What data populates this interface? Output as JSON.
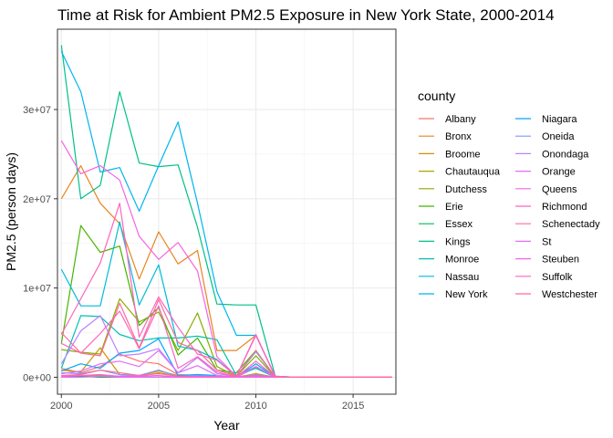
{
  "chart_data": {
    "type": "line",
    "title": "Time at Risk for Ambient PM2.5 Exposure in New York State, 2000-2014",
    "xlabel": "Year",
    "ylabel": "PM2.5 (person days)",
    "xlim": [
      1999.8,
      2017.2
    ],
    "ylim": [
      -1900000,
      39000000
    ],
    "x_ticks": [
      2000,
      2005,
      2010,
      2015
    ],
    "x_tick_labels": [
      "2000",
      "2005",
      "2010",
      "2015"
    ],
    "y_ticks": [
      0,
      10000000,
      20000000,
      30000000
    ],
    "y_tick_labels": [
      "0e+00",
      "1e+07",
      "2e+07",
      "3e+07"
    ],
    "grid": true,
    "legend_title": "county",
    "legend_position": "right",
    "x": [
      2000,
      2001,
      2002,
      2003,
      2004,
      2005,
      2006,
      2007,
      2008,
      2009,
      2010,
      2011,
      2012,
      2013,
      2014,
      2015,
      2016,
      2017
    ],
    "series": [
      {
        "name": "Albany",
        "color": "#F8766D",
        "values": [
          1000000,
          500000,
          1200000,
          2600000,
          1800000,
          1500000,
          300000,
          200000,
          100000,
          0,
          1100000,
          0,
          0,
          0,
          0,
          0,
          0,
          0
        ]
      },
      {
        "name": "Bronx",
        "color": "#E7851E",
        "values": [
          20000000,
          23700000,
          19500000,
          17200000,
          11000000,
          16300000,
          12700000,
          14200000,
          3000000,
          3000000,
          4700000,
          50000,
          0,
          0,
          0,
          0,
          0,
          0
        ]
      },
      {
        "name": "Broome",
        "color": "#D09400",
        "values": [
          800000,
          600000,
          3300000,
          300000,
          200000,
          700000,
          200000,
          100000,
          50000,
          0,
          400000,
          0,
          0,
          0,
          0,
          0,
          0,
          0
        ]
      },
      {
        "name": "Chautauqua",
        "color": "#B2A100",
        "values": [
          200000,
          100000,
          200000,
          100000,
          100000,
          500000,
          100000,
          50000,
          0,
          0,
          200000,
          0,
          0,
          0,
          0,
          0,
          0,
          0
        ]
      },
      {
        "name": "Dutchess",
        "color": "#89AC00",
        "values": [
          3100000,
          2800000,
          2600000,
          8800000,
          6200000,
          7300000,
          3000000,
          7200000,
          1200000,
          100000,
          2400000,
          0,
          0,
          0,
          0,
          0,
          0,
          0
        ]
      },
      {
        "name": "Erie",
        "color": "#45B500",
        "values": [
          3800000,
          17000000,
          14000000,
          14700000,
          5800000,
          7800000,
          2500000,
          4400000,
          800000,
          500000,
          3000000,
          0,
          0,
          0,
          0,
          0,
          0,
          0
        ]
      },
      {
        "name": "Essex",
        "color": "#00BC51",
        "values": [
          0,
          100000,
          0,
          0,
          0,
          0,
          0,
          0,
          0,
          0,
          0,
          0,
          0,
          0,
          0,
          0,
          0,
          0
        ]
      },
      {
        "name": "Kings",
        "color": "#00C087",
        "values": [
          37200000,
          20000000,
          21500000,
          32000000,
          24000000,
          23600000,
          23800000,
          16800000,
          8200000,
          8100000,
          8100000,
          100000,
          0,
          0,
          0,
          0,
          0,
          0
        ]
      },
      {
        "name": "Monroe",
        "color": "#00C0B2",
        "values": [
          1000000,
          6900000,
          6800000,
          4800000,
          4100000,
          4400000,
          4400000,
          4600000,
          4200000,
          200000,
          1000000,
          0,
          0,
          0,
          0,
          0,
          0,
          0
        ]
      },
      {
        "name": "Nassau",
        "color": "#00BCD6",
        "values": [
          12100000,
          8000000,
          8000000,
          17400000,
          8100000,
          12600000,
          3500000,
          3000000,
          2000000,
          100000,
          2900000,
          0,
          0,
          0,
          0,
          0,
          0,
          0
        ]
      },
      {
        "name": "New York",
        "color": "#00B5EE",
        "values": [
          36500000,
          32000000,
          23000000,
          23500000,
          18600000,
          23700000,
          28600000,
          19500000,
          9600000,
          4700000,
          4700000,
          100000,
          0,
          0,
          0,
          0,
          0,
          0
        ]
      },
      {
        "name": "Niagara",
        "color": "#00A6FF",
        "values": [
          700000,
          1500000,
          1000000,
          2700000,
          3000000,
          4300000,
          200000,
          300000,
          200000,
          0,
          1500000,
          0,
          0,
          0,
          0,
          0,
          0,
          0
        ]
      },
      {
        "name": "Oneida",
        "color": "#7F96FF",
        "values": [
          500000,
          400000,
          800000,
          300000,
          200000,
          800000,
          100000,
          200000,
          100000,
          0,
          300000,
          0,
          0,
          0,
          0,
          0,
          0,
          0
        ]
      },
      {
        "name": "Onondaga",
        "color": "#BC81FF",
        "values": [
          1500000,
          5200000,
          6900000,
          2400000,
          2600000,
          3200000,
          500000,
          2200000,
          400000,
          100000,
          1200000,
          0,
          0,
          0,
          0,
          0,
          0,
          0
        ]
      },
      {
        "name": "Orange",
        "color": "#E26EF7",
        "values": [
          400000,
          700000,
          1500000,
          1800000,
          1200000,
          3000000,
          500000,
          1300000,
          200000,
          50000,
          1200000,
          0,
          0,
          0,
          0,
          0,
          0,
          0
        ]
      },
      {
        "name": "Queens",
        "color": "#F863DF",
        "values": [
          26500000,
          22800000,
          23700000,
          22100000,
          15800000,
          13200000,
          15100000,
          11900000,
          2300000,
          100000,
          4700000,
          100000,
          0,
          0,
          0,
          0,
          0,
          0
        ]
      },
      {
        "name": "Richmond",
        "color": "#FF62BF",
        "values": [
          3800000,
          2700000,
          4900000,
          7400000,
          3200000,
          8000000,
          1000000,
          2300000,
          600000,
          0,
          1800000,
          0,
          0,
          0,
          0,
          0,
          0,
          0
        ]
      },
      {
        "name": "Schenectady",
        "color": "#FF6A9A",
        "values": [
          200000,
          300000,
          800000,
          500000,
          200000,
          400000,
          100000,
          100000,
          50000,
          0,
          200000,
          0,
          0,
          0,
          0,
          0,
          0,
          0
        ]
      },
      {
        "name": "St",
        "color": "#E26EF7",
        "values": [
          0,
          0,
          100000,
          0,
          0,
          0,
          0,
          0,
          0,
          0,
          0,
          0,
          0,
          0,
          0,
          0,
          0,
          0
        ]
      },
      {
        "name": "Steuben",
        "color": "#F863DF",
        "values": [
          100000,
          200000,
          300000,
          100000,
          100000,
          200000,
          0,
          50000,
          0,
          0,
          100000,
          0,
          0,
          0,
          0,
          0,
          0,
          0
        ]
      },
      {
        "name": "Suffolk",
        "color": "#FF62BF",
        "values": [
          4800000,
          8800000,
          12800000,
          19500000,
          4500000,
          9000000,
          5600000,
          2600000,
          1900000,
          100000,
          4800000,
          0,
          0,
          0,
          0,
          0,
          0,
          0
        ]
      },
      {
        "name": "Westchester",
        "color": "#FF6A9A",
        "values": [
          5000000,
          2700000,
          2400000,
          8300000,
          3300000,
          8700000,
          3900000,
          3000000,
          800000,
          100000,
          3000000,
          0,
          0,
          0,
          0,
          0,
          0,
          0
        ]
      }
    ]
  }
}
